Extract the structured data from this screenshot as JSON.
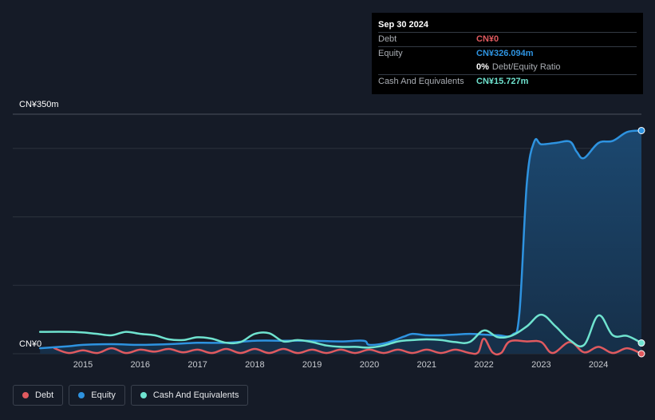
{
  "tooltip": {
    "date": "Sep 30 2024",
    "rows": [
      {
        "label": "Debt",
        "value": "CN¥0"
      },
      {
        "label": "Equity",
        "value": "CN¥326.094m"
      },
      {
        "label": "",
        "value": "0%",
        "suffix": "Debt/Equity Ratio"
      },
      {
        "label": "Cash And Equivalents",
        "value": "CN¥15.727m"
      }
    ]
  },
  "legend": [
    {
      "label": "Debt"
    },
    {
      "label": "Equity"
    },
    {
      "label": "Cash And Equivalents"
    }
  ],
  "colors": {
    "debt": "#e05a5f",
    "equity": "#2e93e0",
    "cash": "#6fe3cf",
    "background": "#151b27",
    "grid": "#2c333e"
  },
  "chart_data": {
    "type": "area",
    "y_unit": "CN¥ millions",
    "ylim": [
      0,
      350
    ],
    "y_tick_labels": [
      {
        "value": 350,
        "label": "CN¥350m"
      },
      {
        "value": 0,
        "label": "CN¥0"
      }
    ],
    "xlim": [
      2014.22,
      2024.75
    ],
    "x_ticks": [
      2015,
      2016,
      2017,
      2018,
      2019,
      2020,
      2021,
      2022,
      2023,
      2024
    ],
    "grid": true,
    "series": [
      {
        "name": "Equity",
        "key": "equity",
        "fill": true,
        "points": [
          [
            2014.25,
            8
          ],
          [
            2014.75,
            11
          ],
          [
            2015.0,
            13
          ],
          [
            2015.5,
            14
          ],
          [
            2016.0,
            13
          ],
          [
            2016.5,
            14
          ],
          [
            2017.0,
            16
          ],
          [
            2017.5,
            16
          ],
          [
            2018.0,
            19
          ],
          [
            2018.5,
            19
          ],
          [
            2019.0,
            19
          ],
          [
            2019.5,
            18
          ],
          [
            2019.9,
            19
          ],
          [
            2020.0,
            13
          ],
          [
            2020.3,
            16
          ],
          [
            2020.6,
            25
          ],
          [
            2020.75,
            29
          ],
          [
            2021.0,
            27
          ],
          [
            2021.25,
            27
          ],
          [
            2021.5,
            28
          ],
          [
            2021.75,
            29
          ],
          [
            2022.0,
            28
          ],
          [
            2022.25,
            27
          ],
          [
            2022.5,
            28
          ],
          [
            2022.62,
            60
          ],
          [
            2022.75,
            250
          ],
          [
            2022.88,
            310
          ],
          [
            2023.0,
            306
          ],
          [
            2023.25,
            308
          ],
          [
            2023.5,
            310
          ],
          [
            2023.62,
            295
          ],
          [
            2023.75,
            286
          ],
          [
            2024.0,
            308
          ],
          [
            2024.25,
            311
          ],
          [
            2024.5,
            324
          ],
          [
            2024.75,
            326.094
          ]
        ]
      },
      {
        "name": "Cash And Equivalents",
        "key": "cash",
        "fill": false,
        "points": [
          [
            2014.25,
            32
          ],
          [
            2014.75,
            32
          ],
          [
            2015.0,
            31
          ],
          [
            2015.25,
            29
          ],
          [
            2015.5,
            27
          ],
          [
            2015.75,
            32
          ],
          [
            2016.0,
            29
          ],
          [
            2016.25,
            27
          ],
          [
            2016.5,
            21
          ],
          [
            2016.75,
            20
          ],
          [
            2017.0,
            24
          ],
          [
            2017.25,
            22
          ],
          [
            2017.5,
            16
          ],
          [
            2017.75,
            17
          ],
          [
            2018.0,
            29
          ],
          [
            2018.25,
            30
          ],
          [
            2018.5,
            18
          ],
          [
            2018.75,
            20
          ],
          [
            2019.0,
            17
          ],
          [
            2019.25,
            12
          ],
          [
            2019.5,
            10
          ],
          [
            2019.75,
            10
          ],
          [
            2020.0,
            9
          ],
          [
            2020.25,
            12
          ],
          [
            2020.5,
            18
          ],
          [
            2020.75,
            20
          ],
          [
            2021.0,
            21
          ],
          [
            2021.25,
            20
          ],
          [
            2021.5,
            17
          ],
          [
            2021.75,
            17
          ],
          [
            2022.0,
            34
          ],
          [
            2022.25,
            24
          ],
          [
            2022.5,
            27
          ],
          [
            2022.75,
            40
          ],
          [
            2023.0,
            57
          ],
          [
            2023.25,
            40
          ],
          [
            2023.5,
            20
          ],
          [
            2023.75,
            13
          ],
          [
            2024.0,
            56
          ],
          [
            2024.25,
            27
          ],
          [
            2024.5,
            26
          ],
          [
            2024.75,
            15.727
          ]
        ]
      },
      {
        "name": "Debt",
        "key": "debt",
        "fill": false,
        "points": [
          [
            2014.5,
            8
          ],
          [
            2014.75,
            1
          ],
          [
            2015.0,
            5
          ],
          [
            2015.25,
            1
          ],
          [
            2015.5,
            8
          ],
          [
            2015.75,
            1
          ],
          [
            2016.0,
            6
          ],
          [
            2016.25,
            3
          ],
          [
            2016.5,
            7
          ],
          [
            2016.75,
            2
          ],
          [
            2017.0,
            6
          ],
          [
            2017.25,
            1
          ],
          [
            2017.5,
            7
          ],
          [
            2017.75,
            1
          ],
          [
            2018.0,
            7
          ],
          [
            2018.25,
            1
          ],
          [
            2018.5,
            7
          ],
          [
            2018.75,
            1
          ],
          [
            2019.0,
            6
          ],
          [
            2019.25,
            1
          ],
          [
            2019.5,
            6
          ],
          [
            2019.75,
            1
          ],
          [
            2020.0,
            6
          ],
          [
            2020.25,
            1
          ],
          [
            2020.5,
            6
          ],
          [
            2020.75,
            1
          ],
          [
            2021.0,
            6
          ],
          [
            2021.25,
            1
          ],
          [
            2021.5,
            6
          ],
          [
            2021.75,
            1
          ],
          [
            2021.9,
            2
          ],
          [
            2022.0,
            22
          ],
          [
            2022.15,
            2
          ],
          [
            2022.3,
            1
          ],
          [
            2022.45,
            18
          ],
          [
            2022.75,
            18
          ],
          [
            2023.0,
            17
          ],
          [
            2023.2,
            1
          ],
          [
            2023.5,
            17
          ],
          [
            2023.75,
            2
          ],
          [
            2024.0,
            10
          ],
          [
            2024.25,
            1
          ],
          [
            2024.5,
            8
          ],
          [
            2024.75,
            0
          ]
        ]
      }
    ]
  }
}
